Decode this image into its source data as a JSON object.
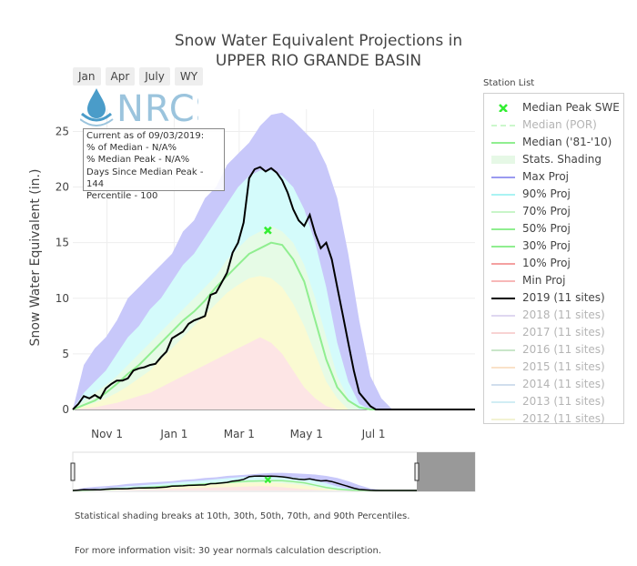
{
  "title_line1": "Snow Water Equivalent Projections in",
  "title_line2": "UPPER RIO GRANDE BASIN",
  "range_buttons": [
    "Jan",
    "Apr",
    "July",
    "WY"
  ],
  "logo_text": "NRCS",
  "info_box": {
    "line1": "Current as of 09/03/2019:",
    "line2": "% of Median - N/A%",
    "line3": "% Median Peak - N/A%",
    "line4": "Days Since Median Peak - 144",
    "line5": "Percentile - 100"
  },
  "legend_header": "Station List",
  "legend_items": [
    {
      "label": "Median Peak SWE",
      "color": "#33ee33",
      "kind": "x",
      "active": true
    },
    {
      "label": "Median (POR)",
      "color": "#90ee90",
      "kind": "dash",
      "active": false
    },
    {
      "label": "Median ('81-'10)",
      "color": "#90ee90",
      "kind": "line",
      "active": true
    },
    {
      "label": "Stats. Shading",
      "color": "#e6f8e6",
      "kind": "block",
      "active": true
    },
    {
      "label": "Max Proj",
      "color": "#9a9af0",
      "kind": "line",
      "active": true
    },
    {
      "label": "90% Proj",
      "color": "#aaf3f3",
      "kind": "line",
      "active": true
    },
    {
      "label": "70% Proj",
      "color": "#c8f5c8",
      "kind": "line",
      "active": true
    },
    {
      "label": "50% Proj",
      "color": "#90ee90",
      "kind": "line",
      "active": true
    },
    {
      "label": "30% Proj",
      "color": "#90ee90",
      "kind": "line",
      "active": true
    },
    {
      "label": "10% Proj",
      "color": "#f4a0a0",
      "kind": "line",
      "active": true
    },
    {
      "label": "Min Proj",
      "color": "#f7b8b8",
      "kind": "line",
      "active": true
    },
    {
      "label": "2019 (11 sites)",
      "color": "#000000",
      "kind": "line",
      "active": true
    },
    {
      "label": "2018 (11 sites)",
      "color": "#b9a7e0",
      "kind": "line",
      "active": false
    },
    {
      "label": "2017 (11 sites)",
      "color": "#f0a0a0",
      "kind": "line",
      "active": false
    },
    {
      "label": "2016 (11 sites)",
      "color": "#88c988",
      "kind": "line",
      "active": false
    },
    {
      "label": "2015 (11 sites)",
      "color": "#f5c08a",
      "kind": "line",
      "active": false
    },
    {
      "label": "2014 (11 sites)",
      "color": "#9ab8d8",
      "kind": "line",
      "active": false
    },
    {
      "label": "2013 (11 sites)",
      "color": "#9ad8e8",
      "kind": "line",
      "active": false
    },
    {
      "label": "2012 (11 sites)",
      "color": "#e6e6a0",
      "kind": "line",
      "active": false
    }
  ],
  "footnote1": "Statistical shading breaks at 10th, 30th, 50th, 70th, and 90th Percentiles.",
  "footnote2": "For more information visit: 30 year normals calculation description.",
  "colors": {
    "max_band": "#c8c8fa",
    "p90_band": "#d4fbfb",
    "p70_band": "#e6fbe6",
    "p50_band": "#fafad2",
    "p30_band": "#fde5e5",
    "median": "#90ee90",
    "current": "#000000",
    "peak_marker": "#33ee33"
  },
  "chart_data": {
    "type": "area",
    "title": "Snow Water Equivalent Projections in UPPER RIO GRANDE BASIN",
    "xlabel": "",
    "ylabel": "Snow Water Equivalent (in.)",
    "ylim": [
      0,
      27
    ],
    "yticks": [
      0,
      5,
      10,
      15,
      20,
      25
    ],
    "xlim_days": [
      0,
      365
    ],
    "xticks": [
      {
        "day": 31,
        "label": "Nov 1"
      },
      {
        "day": 92,
        "label": "Jan 1"
      },
      {
        "day": 151,
        "label": "Mar 1"
      },
      {
        "day": 212,
        "label": "May 1"
      },
      {
        "day": 273,
        "label": "Jul 1"
      }
    ],
    "x_unit": "days since Oct 1",
    "series": [
      {
        "name": "Max Proj",
        "x": [
          0,
          10,
          20,
          30,
          40,
          50,
          60,
          70,
          80,
          90,
          100,
          110,
          120,
          130,
          140,
          150,
          160,
          170,
          180,
          190,
          200,
          210,
          220,
          230,
          240,
          250,
          260,
          270,
          280,
          290,
          300,
          365
        ],
        "y": [
          0,
          4,
          5.5,
          6.5,
          8,
          10,
          11,
          12,
          13,
          14,
          16,
          17,
          19,
          20,
          22,
          23,
          24,
          25.5,
          26.5,
          26.7,
          26,
          25,
          24,
          22,
          19,
          14,
          8,
          3,
          1,
          0,
          0,
          0
        ]
      },
      {
        "name": "90% Proj",
        "x": [
          0,
          10,
          20,
          30,
          40,
          50,
          60,
          70,
          80,
          90,
          100,
          110,
          120,
          130,
          140,
          150,
          160,
          170,
          180,
          190,
          200,
          210,
          220,
          230,
          240,
          250,
          260,
          270,
          365
        ],
        "y": [
          0,
          1.5,
          2.5,
          3.5,
          5,
          6.5,
          7.5,
          9,
          10,
          11.5,
          13,
          14,
          15.5,
          17,
          18.5,
          20,
          21,
          21.5,
          21.5,
          21,
          20,
          18,
          15,
          11,
          6,
          2.5,
          0.5,
          0,
          0
        ]
      },
      {
        "name": "70% Proj",
        "x": [
          0,
          10,
          20,
          30,
          40,
          50,
          60,
          70,
          80,
          90,
          100,
          110,
          120,
          130,
          140,
          150,
          160,
          170,
          180,
          190,
          200,
          210,
          220,
          230,
          240,
          250,
          260,
          365
        ],
        "y": [
          0,
          0.8,
          1.5,
          2.2,
          3,
          4,
          5,
          6,
          7,
          8,
          9,
          10,
          11,
          12,
          13.5,
          14.5,
          15.5,
          16,
          16.5,
          16,
          15,
          13,
          10,
          6.5,
          3,
          1,
          0,
          0
        ]
      },
      {
        "name": "50% Proj",
        "x": [
          0,
          10,
          20,
          30,
          40,
          50,
          60,
          70,
          80,
          90,
          100,
          110,
          120,
          130,
          140,
          150,
          160,
          170,
          180,
          190,
          200,
          210,
          220,
          230,
          240,
          250,
          365
        ],
        "y": [
          0,
          0.3,
          0.6,
          1,
          1.5,
          2.1,
          2.8,
          3.5,
          4.5,
          5.5,
          6.5,
          7.5,
          8.5,
          9.5,
          10.5,
          11.2,
          11.8,
          12,
          11.8,
          11,
          9.5,
          7.5,
          5,
          2.5,
          1,
          0,
          0
        ]
      },
      {
        "name": "30% Proj",
        "x": [
          0,
          10,
          20,
          30,
          40,
          50,
          60,
          70,
          80,
          90,
          100,
          110,
          120,
          130,
          140,
          150,
          160,
          170,
          180,
          190,
          200,
          210,
          220,
          230,
          240,
          365
        ],
        "y": [
          0,
          0.1,
          0.2,
          0.4,
          0.6,
          0.9,
          1.2,
          1.5,
          2,
          2.5,
          3,
          3.5,
          4,
          4.5,
          5,
          5.5,
          6,
          6.5,
          6,
          5,
          3.5,
          2,
          1,
          0.3,
          0,
          0
        ]
      },
      {
        "name": "Median ('81-'10)",
        "x": [
          0,
          10,
          20,
          30,
          40,
          50,
          60,
          70,
          80,
          90,
          100,
          110,
          120,
          130,
          140,
          150,
          160,
          170,
          180,
          190,
          200,
          210,
          220,
          230,
          240,
          250,
          260,
          270,
          365
        ],
        "y": [
          0,
          0.4,
          0.8,
          1.5,
          2.3,
          3.2,
          4,
          5,
          6,
          7,
          8,
          8.8,
          9.8,
          11,
          12,
          13,
          14,
          14.5,
          15,
          14.8,
          13.5,
          11.5,
          8,
          4.5,
          2,
          0.8,
          0.2,
          0,
          0
        ]
      },
      {
        "name": "2019 (11 sites)",
        "x": [
          0,
          5,
          10,
          15,
          20,
          25,
          30,
          35,
          40,
          45,
          50,
          55,
          60,
          65,
          70,
          75,
          80,
          85,
          90,
          95,
          100,
          105,
          110,
          115,
          120,
          125,
          130,
          135,
          140,
          145,
          150,
          155,
          160,
          165,
          170,
          175,
          180,
          185,
          190,
          195,
          200,
          205,
          210,
          215,
          220,
          225,
          230,
          235,
          240,
          245,
          250,
          255,
          260,
          270,
          275,
          365
        ],
        "y": [
          0,
          0.5,
          1.2,
          1.0,
          1.3,
          1.0,
          1.9,
          2.3,
          2.6,
          2.6,
          2.8,
          3.5,
          3.7,
          3.8,
          4.0,
          4.1,
          4.7,
          5.2,
          6.4,
          6.7,
          7.0,
          7.7,
          8.0,
          8.2,
          8.4,
          10.3,
          10.5,
          11.4,
          12.3,
          14.1,
          15.0,
          16.8,
          20.8,
          21.6,
          21.8,
          21.4,
          21.7,
          21.3,
          20.6,
          19.5,
          18.0,
          17.0,
          16.5,
          17.5,
          15.8,
          14.5,
          15.0,
          13.5,
          11.0,
          8.5,
          6.0,
          3.5,
          1.5,
          0.3,
          0,
          0
        ]
      }
    ],
    "annotations": [
      {
        "name": "Median Peak SWE",
        "x": 177,
        "y": 16.1
      }
    ]
  }
}
